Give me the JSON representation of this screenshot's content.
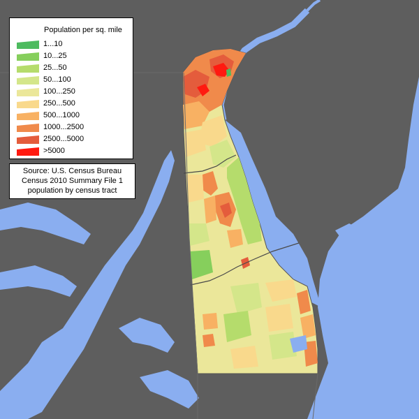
{
  "legend": {
    "title": "Population per sq. mile",
    "items": [
      {
        "label": "1...10",
        "color": "#4dbb5f"
      },
      {
        "label": "10...25",
        "color": "#86cf5c"
      },
      {
        "label": "25...50",
        "color": "#b5dc6c"
      },
      {
        "label": "50...100",
        "color": "#d4e68a"
      },
      {
        "label": "100...250",
        "color": "#ebe79a"
      },
      {
        "label": "250...500",
        "color": "#f9d98c"
      },
      {
        "label": "500...1000",
        "color": "#f8b163"
      },
      {
        "label": "1000...2500",
        "color": "#f08a4b"
      },
      {
        "label": "2500...5000",
        "color": "#e45c3c"
      },
      {
        "label": ">5000",
        "color": "#ff1a10"
      }
    ]
  },
  "source": {
    "lines": [
      "Source: U.S. Census Bureau",
      "Census 2010 Summary File 1",
      "population by census tract"
    ]
  },
  "colors": {
    "water": "#8aaef0",
    "land": "#5e5e5e",
    "county_border": "#4a4a4a"
  }
}
